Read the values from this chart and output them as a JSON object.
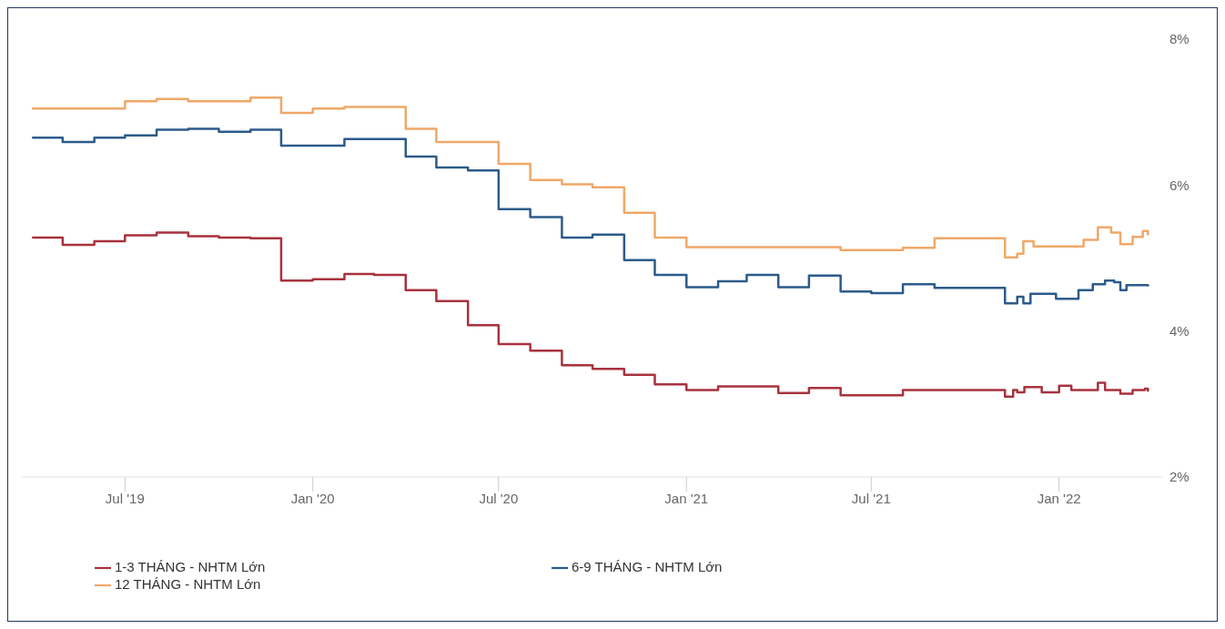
{
  "chart_data": {
    "type": "step",
    "series": [
      {
        "name": "1-3 THÁNG - NHTM Lớn",
        "color": "#a8323e",
        "x": [
          "2019-04",
          "2019-05",
          "2019-06",
          "2019-07",
          "2019-08",
          "2019-09",
          "2019-10",
          "2019-11",
          "2019-12",
          "2020-01",
          "2020-02",
          "2020-03",
          "2020-04",
          "2020-05",
          "2020-06",
          "2020-07",
          "2020-08",
          "2020-09",
          "2020-10",
          "2020-11",
          "2020-12",
          "2021-01",
          "2021-02",
          "2021-03",
          "2021-04",
          "2021-05",
          "2021-06",
          "2021-07",
          "2021-08",
          "2021-09",
          "2021-10",
          "2021-11-09",
          "2021-11-17",
          "2021-11-21",
          "2021-11-28",
          "2021-12-15",
          "2022-01-01",
          "2022-01-13",
          "2022-01-27",
          "2022-02-08",
          "2022-02-15",
          "2022-03-02",
          "2022-03-14",
          "2022-03-26",
          "2022-03-29"
        ],
        "values": [
          5.28,
          5.18,
          5.23,
          5.31,
          5.35,
          5.3,
          5.28,
          5.27,
          4.69,
          4.71,
          4.78,
          4.77,
          4.56,
          4.41,
          4.08,
          3.82,
          3.73,
          3.53,
          3.48,
          3.4,
          3.27,
          3.19,
          3.24,
          3.24,
          3.15,
          3.22,
          3.12,
          3.12,
          3.19,
          3.19,
          3.19,
          3.1,
          3.19,
          3.16,
          3.23,
          3.16,
          3.25,
          3.19,
          3.19,
          3.29,
          3.19,
          3.14,
          3.19,
          3.21,
          3.17
        ]
      },
      {
        "name": "6-9 THÁNG - NHTM Lớn",
        "color": "#2c5b8a",
        "x": [
          "2019-04",
          "2019-05",
          "2019-06",
          "2019-07",
          "2019-08",
          "2019-09",
          "2019-10",
          "2019-11",
          "2019-12",
          "2020-01",
          "2020-02",
          "2020-03",
          "2020-04",
          "2020-05",
          "2020-06",
          "2020-07",
          "2020-08",
          "2020-09",
          "2020-10",
          "2020-11",
          "2020-12",
          "2021-01",
          "2021-02",
          "2021-03",
          "2021-04",
          "2021-05",
          "2021-06",
          "2021-07",
          "2021-08",
          "2021-09",
          "2021-10",
          "2021-11-09",
          "2021-11-21",
          "2021-11-27",
          "2021-12-04",
          "2021-12-15",
          "2021-12-29",
          "2022-01-07",
          "2022-01-20",
          "2022-02-03",
          "2022-02-15",
          "2022-02-24",
          "2022-03-02",
          "2022-03-08",
          "2022-03-29"
        ],
        "values": [
          6.65,
          6.59,
          6.65,
          6.68,
          6.76,
          6.77,
          6.73,
          6.76,
          6.54,
          6.54,
          6.63,
          6.63,
          6.39,
          6.24,
          6.2,
          5.67,
          5.56,
          5.28,
          5.32,
          4.97,
          4.77,
          4.6,
          4.68,
          4.77,
          4.6,
          4.76,
          4.54,
          4.52,
          4.64,
          4.59,
          4.59,
          4.38,
          4.47,
          4.38,
          4.51,
          4.51,
          4.44,
          4.44,
          4.56,
          4.64,
          4.69,
          4.67,
          4.56,
          4.63,
          4.61
        ]
      },
      {
        "name": "12 THÁNG - NHTM Lớn",
        "color": "#f0a868",
        "x": [
          "2019-04",
          "2019-05",
          "2019-06",
          "2019-07",
          "2019-08",
          "2019-09",
          "2019-10",
          "2019-11",
          "2019-12",
          "2020-01",
          "2020-02",
          "2020-03",
          "2020-04",
          "2020-05",
          "2020-06",
          "2020-07",
          "2020-08",
          "2020-09",
          "2020-10",
          "2020-11",
          "2020-12",
          "2021-01",
          "2021-02",
          "2021-03",
          "2021-04",
          "2021-05",
          "2021-06",
          "2021-07",
          "2021-08",
          "2021-09",
          "2021-10",
          "2021-11-09",
          "2021-11-21",
          "2021-11-27",
          "2021-12-07",
          "2022-01-01",
          "2022-01-25",
          "2022-02-08",
          "2022-02-21",
          "2022-03-02",
          "2022-03-14",
          "2022-03-24",
          "2022-03-29"
        ],
        "values": [
          7.05,
          7.05,
          7.05,
          7.15,
          7.18,
          7.15,
          7.15,
          7.2,
          6.99,
          7.05,
          7.07,
          7.07,
          6.77,
          6.59,
          6.59,
          6.29,
          6.07,
          6.01,
          5.97,
          5.62,
          5.28,
          5.15,
          5.15,
          5.15,
          5.15,
          5.15,
          5.11,
          5.11,
          5.14,
          5.27,
          5.27,
          5.01,
          5.06,
          5.23,
          5.16,
          5.16,
          5.25,
          5.42,
          5.35,
          5.19,
          5.29,
          5.37,
          5.31
        ]
      }
    ],
    "xlim": [
      "2019-03-22",
      "2022-04-12"
    ],
    "xticks": [
      {
        "value": "2019-07-01",
        "label": "Jul '19"
      },
      {
        "value": "2020-01-01",
        "label": "Jan '20"
      },
      {
        "value": "2020-07-01",
        "label": "Jul '20"
      },
      {
        "value": "2021-01-01",
        "label": "Jan '21"
      },
      {
        "value": "2021-07-01",
        "label": "Jul '21"
      },
      {
        "value": "2022-01-01",
        "label": "Jan '22"
      }
    ],
    "ylim": [
      2,
      8
    ],
    "yticks": [
      {
        "value": 2,
        "label": "2%"
      },
      {
        "value": 4,
        "label": "4%"
      },
      {
        "value": 6,
        "label": "6%"
      },
      {
        "value": 8,
        "label": "8%"
      }
    ],
    "grid": false,
    "legend": "bottom"
  }
}
